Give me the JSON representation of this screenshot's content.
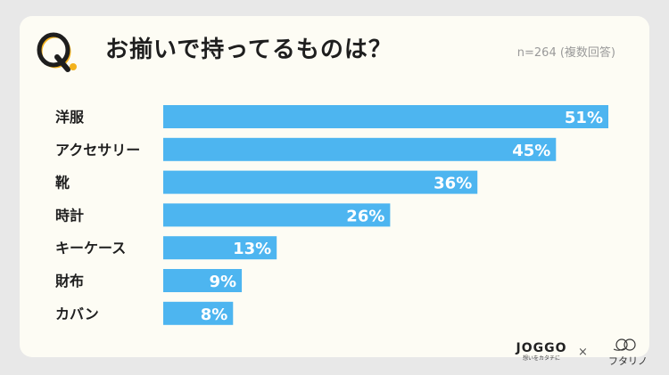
{
  "header": {
    "q_letter": "Q",
    "title": "お揃いで持ってるものは？",
    "note": "n=264 (複数回答)"
  },
  "colors": {
    "bar": "#4db5f0",
    "q_accent": "#f3b21c",
    "text": "#1e1e1e"
  },
  "chart_data": {
    "type": "bar",
    "orientation": "horizontal",
    "categories": [
      "洋服",
      "アクセサリー",
      "靴",
      "時計",
      "キーケース",
      "財布",
      "カバン"
    ],
    "values": [
      51,
      45,
      36,
      26,
      13,
      9,
      8
    ],
    "value_labels": [
      "51%",
      "45%",
      "36%",
      "26%",
      "13%",
      "9%",
      "8%"
    ],
    "unit": "%",
    "xlim": [
      0,
      51
    ],
    "grid": false,
    "legend": "none"
  },
  "footer": {
    "brand": "JOGGO",
    "brand_tagline": "想いをカタチに",
    "separator": "×",
    "partner": "フタリノ",
    "partner_logo_icon": "interlocking-rings-icon"
  }
}
